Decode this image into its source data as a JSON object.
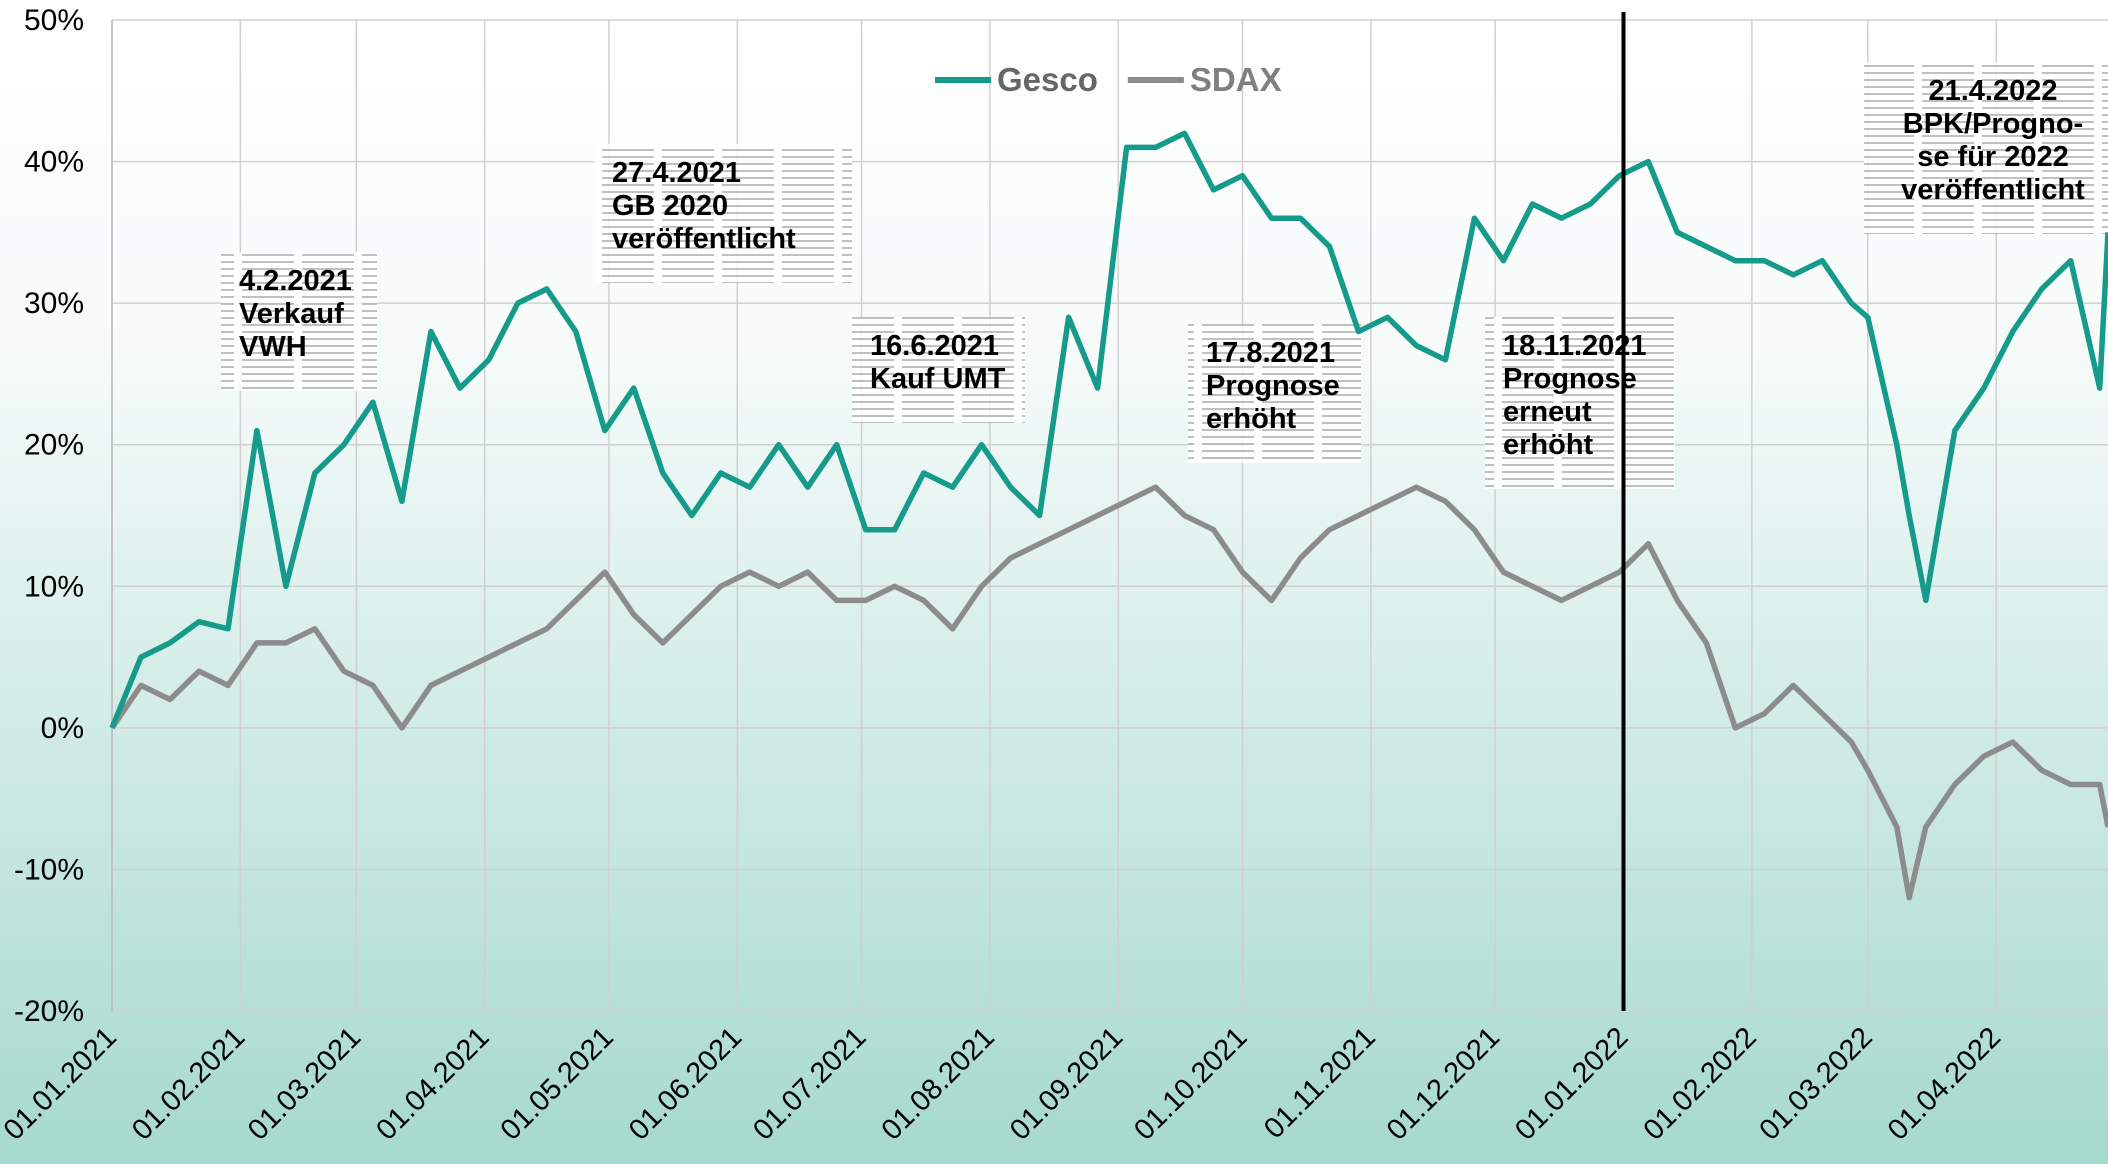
{
  "chart_data": {
    "type": "line",
    "x": [
      "01.01.2021",
      "08.01.2021",
      "15.01.2021",
      "22.01.2021",
      "29.01.2021",
      "05.02.2021",
      "12.02.2021",
      "19.02.2021",
      "26.02.2021",
      "05.03.2021",
      "12.03.2021",
      "19.03.2021",
      "26.03.2021",
      "02.04.2021",
      "09.04.2021",
      "16.04.2021",
      "23.04.2021",
      "30.04.2021",
      "07.05.2021",
      "14.05.2021",
      "21.05.2021",
      "28.05.2021",
      "04.06.2021",
      "11.06.2021",
      "18.06.2021",
      "25.06.2021",
      "02.07.2021",
      "09.07.2021",
      "16.07.2021",
      "23.07.2021",
      "30.07.2021",
      "06.08.2021",
      "13.08.2021",
      "20.08.2021",
      "27.08.2021",
      "03.09.2021",
      "10.09.2021",
      "17.09.2021",
      "24.09.2021",
      "01.10.2021",
      "08.10.2021",
      "15.10.2021",
      "22.10.2021",
      "29.10.2021",
      "05.11.2021",
      "12.11.2021",
      "19.11.2021",
      "26.11.2021",
      "03.12.2021",
      "10.12.2021",
      "17.12.2021",
      "24.12.2021",
      "31.12.2021",
      "07.01.2022",
      "14.01.2022",
      "21.01.2022",
      "28.01.2022",
      "04.02.2022",
      "11.02.2022",
      "18.02.2022",
      "25.02.2022",
      "01.03.2022",
      "08.03.2022",
      "11.03.2022",
      "15.03.2022",
      "22.03.2022",
      "29.03.2022",
      "05.04.2022",
      "12.04.2022",
      "19.04.2022",
      "26.04.2022",
      "28.04.2022"
    ],
    "series": [
      {
        "name": "Gesco",
        "color": "#159a8c",
        "values": [
          0,
          5,
          6,
          7.5,
          7,
          21,
          10,
          18,
          20,
          23,
          16,
          28,
          24,
          26,
          30,
          31,
          28,
          21,
          24,
          18,
          15,
          18,
          17,
          20,
          17,
          20,
          14,
          14,
          18,
          17,
          20,
          17,
          15,
          29,
          24,
          41,
          41,
          42,
          38,
          39,
          36,
          36,
          34,
          28,
          29,
          27,
          26,
          36,
          33,
          37,
          36,
          37,
          39,
          40,
          35,
          34,
          33,
          33,
          32,
          33,
          30,
          29,
          20,
          15,
          9,
          21,
          24,
          28,
          31,
          33,
          24,
          35
        ]
      },
      {
        "name": "SDAX",
        "color": "#8c8c8c",
        "values": [
          0,
          3,
          2,
          4,
          3,
          6,
          6,
          7,
          4,
          3,
          0,
          3,
          4,
          5,
          6,
          7,
          9,
          11,
          8,
          6,
          8,
          10,
          11,
          10,
          11,
          9,
          9,
          10,
          9,
          7,
          10,
          12,
          13,
          14,
          15,
          16,
          17,
          15,
          14,
          11,
          9,
          12,
          14,
          15,
          16,
          17,
          16,
          14,
          11,
          10,
          9,
          10,
          11,
          13,
          9,
          6,
          0,
          1,
          3,
          1,
          -1,
          -3,
          -7,
          -12,
          -7,
          -4,
          -2,
          -1,
          -3,
          -4,
          -4,
          -7
        ]
      }
    ],
    "xlim": [
      "01.01.2021",
      "28.04.2022"
    ],
    "xticks": [
      "01.01.2021",
      "01.02.2021",
      "01.03.2021",
      "01.04.2021",
      "01.05.2021",
      "01.06.2021",
      "01.07.2021",
      "01.08.2021",
      "01.09.2021",
      "01.10.2021",
      "01.11.2021",
      "01.12.2021",
      "01.01.2022",
      "01.02.2022",
      "01.03.2022",
      "01.04.2022"
    ],
    "ylim": [
      -20,
      50
    ],
    "yticks": [
      {
        "value": -20,
        "label": "-20%"
      },
      {
        "value": -10,
        "label": "-10%"
      },
      {
        "value": 0,
        "label": "0%"
      },
      {
        "value": 10,
        "label": "10%"
      },
      {
        "value": 20,
        "label": "20%"
      },
      {
        "value": 30,
        "label": "30%"
      },
      {
        "value": 40,
        "label": "40%"
      },
      {
        "value": 50,
        "label": "50%"
      }
    ],
    "grid": true,
    "legend": "top",
    "marker_line": "01.01.2022",
    "annotations": [
      {
        "lines": [
          "4.2.2021",
          "Verkauf",
          "VWH"
        ]
      },
      {
        "lines": [
          "27.4.2021",
          "GB 2020",
          "veröffentlicht"
        ]
      },
      {
        "lines": [
          "16.6.2021",
          "Kauf UMT"
        ]
      },
      {
        "lines": [
          "17.8.2021",
          "Prognose",
          "erhöht"
        ]
      },
      {
        "lines": [
          "18.11.2021",
          "Prognose",
          "erneut",
          "erhöht"
        ]
      },
      {
        "lines": [
          "21.4.2022",
          "BPK/Progno-",
          "se für 2022",
          "veröffentlicht"
        ]
      }
    ]
  }
}
